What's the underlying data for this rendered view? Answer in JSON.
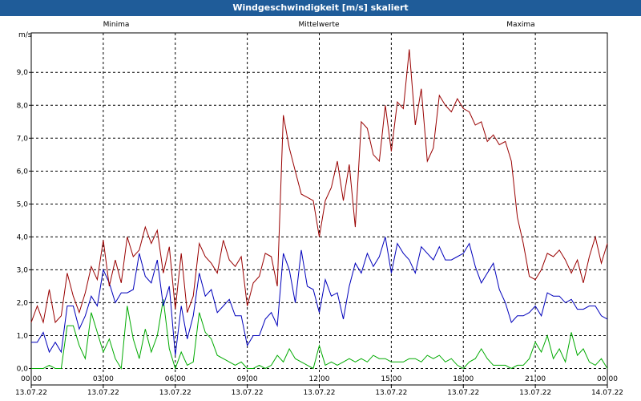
{
  "window": {
    "title": "Windgeschwindigkeit [m/s] skaliert"
  },
  "colors": {
    "minima": "#00aa00",
    "mittelwerte": "#0000bb",
    "maxima": "#990000",
    "titlebar": "#1f5c99"
  },
  "chart_data": {
    "type": "line",
    "title": "Windgeschwindigkeit [m/s] skaliert",
    "ylabel": "m/s",
    "xlabel": "",
    "ylim": [
      -0.5,
      10.2
    ],
    "yticks": [
      "0,0",
      "1,0",
      "2,0",
      "3,0",
      "4,0",
      "5,0",
      "6,0",
      "7,0",
      "8,0",
      "9,0"
    ],
    "xticks": [
      {
        "time": "00:00",
        "date": "13.07.22"
      },
      {
        "time": "03:00",
        "date": "13.07.22"
      },
      {
        "time": "06:00",
        "date": "13.07.22"
      },
      {
        "time": "09:00",
        "date": "13.07.22"
      },
      {
        "time": "12:00",
        "date": "13.07.22"
      },
      {
        "time": "15:00",
        "date": "13.07.22"
      },
      {
        "time": "18:00",
        "date": "13.07.22"
      },
      {
        "time": "21:00",
        "date": "13.07.22"
      },
      {
        "time": "00:00",
        "date": "14.07.22"
      }
    ],
    "x_hours": [
      0,
      0.25,
      0.5,
      0.75,
      1,
      1.25,
      1.5,
      1.75,
      2,
      2.25,
      2.5,
      2.75,
      3,
      3.25,
      3.5,
      3.75,
      4,
      4.25,
      4.5,
      4.75,
      5,
      5.25,
      5.5,
      5.75,
      6,
      6.25,
      6.5,
      6.75,
      7,
      7.25,
      7.5,
      7.75,
      8,
      8.25,
      8.5,
      8.75,
      9,
      9.25,
      9.5,
      9.75,
      10,
      10.25,
      10.5,
      10.75,
      11,
      11.25,
      11.5,
      11.75,
      12,
      12.25,
      12.5,
      12.75,
      13,
      13.25,
      13.5,
      13.75,
      14,
      14.25,
      14.5,
      14.75,
      15,
      15.25,
      15.5,
      15.75,
      16,
      16.25,
      16.5,
      16.75,
      17,
      17.25,
      17.5,
      17.75,
      18,
      18.25,
      18.5,
      18.75,
      19,
      19.25,
      19.5,
      19.75,
      20,
      20.25,
      20.5,
      20.75,
      21,
      21.25,
      21.5,
      21.75,
      22,
      22.25,
      22.5,
      22.75,
      23,
      23.25,
      23.5,
      23.75,
      24
    ],
    "series": [
      {
        "name": "Minima",
        "values": [
          0.0,
          0.0,
          0.0,
          0.1,
          0.0,
          0.0,
          1.3,
          1.3,
          0.7,
          0.3,
          1.7,
          1.1,
          0.5,
          0.9,
          0.3,
          0.0,
          1.9,
          0.9,
          0.3,
          1.2,
          0.5,
          1.0,
          2.1,
          0.6,
          0.0,
          0.5,
          0.1,
          0.2,
          1.7,
          1.1,
          0.9,
          0.4,
          0.3,
          0.2,
          0.1,
          0.2,
          0.0,
          0.0,
          0.1,
          0.0,
          0.1,
          0.4,
          0.2,
          0.6,
          0.3,
          0.2,
          0.1,
          0.0,
          0.7,
          0.1,
          0.2,
          0.1,
          0.2,
          0.3,
          0.2,
          0.3,
          0.2,
          0.4,
          0.3,
          0.3,
          0.2,
          0.2,
          0.2,
          0.3,
          0.3,
          0.2,
          0.4,
          0.3,
          0.4,
          0.2,
          0.3,
          0.1,
          0.0,
          0.2,
          0.3,
          0.6,
          0.3,
          0.1,
          0.1,
          0.1,
          0.0,
          0.1,
          0.1,
          0.3,
          0.8,
          0.5,
          1.0,
          0.3,
          0.6,
          0.2,
          1.1,
          0.4,
          0.6,
          0.2,
          0.1,
          0.3,
          0.0
        ]
      },
      {
        "name": "Mittelwerte",
        "values": [
          0.8,
          0.8,
          1.1,
          0.5,
          0.8,
          0.5,
          1.9,
          1.9,
          1.2,
          1.6,
          2.2,
          1.9,
          3.0,
          2.6,
          2.0,
          2.3,
          2.3,
          2.4,
          3.5,
          2.8,
          2.6,
          3.3,
          1.9,
          2.5,
          0.4,
          1.9,
          0.9,
          1.6,
          2.9,
          2.2,
          2.4,
          1.7,
          1.9,
          2.1,
          1.6,
          1.6,
          0.7,
          1.0,
          1.0,
          1.5,
          1.7,
          1.3,
          3.5,
          3.0,
          2.0,
          3.6,
          2.5,
          2.4,
          1.7,
          2.7,
          2.2,
          2.3,
          1.5,
          2.5,
          3.2,
          2.9,
          3.5,
          3.1,
          3.4,
          4.0,
          2.9,
          3.8,
          3.5,
          3.3,
          2.9,
          3.7,
          3.5,
          3.3,
          3.7,
          3.3,
          3.3,
          3.4,
          3.5,
          3.8,
          3.1,
          2.6,
          2.9,
          3.2,
          2.4,
          2.0,
          1.4,
          1.6,
          1.6,
          1.7,
          1.9,
          1.6,
          2.3,
          2.2,
          2.2,
          2.0,
          2.1,
          1.8,
          1.8,
          1.9,
          1.9,
          1.6,
          1.5
        ]
      },
      {
        "name": "Maxima",
        "values": [
          1.4,
          1.9,
          1.4,
          2.4,
          1.4,
          1.6,
          2.9,
          2.2,
          1.7,
          2.3,
          3.1,
          2.7,
          3.9,
          2.5,
          3.3,
          2.6,
          4.0,
          3.4,
          3.6,
          4.3,
          3.8,
          4.2,
          2.9,
          3.7,
          1.8,
          3.5,
          1.7,
          2.2,
          3.8,
          3.4,
          3.2,
          2.9,
          3.9,
          3.3,
          3.1,
          3.4,
          1.9,
          2.6,
          2.8,
          3.5,
          3.4,
          2.5,
          7.7,
          6.7,
          6.0,
          5.3,
          5.2,
          5.1,
          4.0,
          5.1,
          5.5,
          6.3,
          5.1,
          6.2,
          4.3,
          7.5,
          7.3,
          6.5,
          6.3,
          8.0,
          6.6,
          8.1,
          7.9,
          9.7,
          7.4,
          8.5,
          6.3,
          6.7,
          8.3,
          8.0,
          7.8,
          8.2,
          7.9,
          7.8,
          7.4,
          7.5,
          6.9,
          7.1,
          6.8,
          6.9,
          6.3,
          4.6,
          3.8,
          2.8,
          2.7,
          3.0,
          3.5,
          3.4,
          3.6,
          3.3,
          2.9,
          3.3,
          2.6,
          3.4,
          4.0,
          3.2,
          3.8
        ]
      }
    ],
    "legend": "top"
  }
}
